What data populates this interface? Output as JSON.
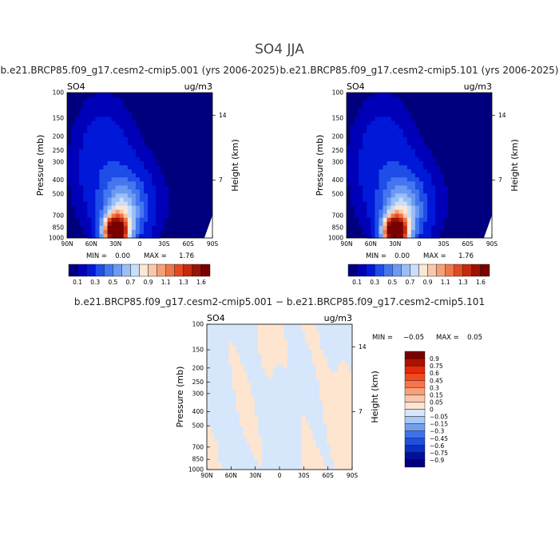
{
  "title": "SO4  JJA",
  "chart_data": [
    {
      "type": "heatmap",
      "panel": "case1",
      "title": "b.e21.BRCP85.f09_g17.cesm2-cmip5.001 (yrs 2006-2025)",
      "variable": "SO4",
      "units": "ug/m3",
      "xlabel": "",
      "ylabel": "Pressure (mb)",
      "ylabel_right": "Height (km)",
      "x_ticks": [
        "90N",
        "60N",
        "30N",
        "0",
        "30S",
        "60S",
        "90S"
      ],
      "y_ticks": [
        "100",
        "150",
        "200",
        "250",
        "300",
        "400",
        "500",
        "700",
        "850",
        "1000"
      ],
      "right_ticks": [
        "14",
        "7"
      ],
      "min_label": "MIN =",
      "min_value": "0.00",
      "max_label": "MAX =",
      "max_value": "1.76",
      "colorbar_ticks": [
        "0.1",
        "0.3",
        "0.5",
        "0.7",
        "0.9",
        "1.1",
        "1.3",
        "1.6"
      ],
      "peak": {
        "lat": 30,
        "pressure_mb": 900,
        "value": 1.76
      }
    },
    {
      "type": "heatmap",
      "panel": "case2",
      "title": "b.e21.BRCP85.f09_g17.cesm2-cmip5.101 (yrs 2006-2025)",
      "variable": "SO4",
      "units": "ug/m3",
      "xlabel": "",
      "ylabel": "Pressure (mb)",
      "ylabel_right": "Height (km)",
      "x_ticks": [
        "90N",
        "60N",
        "30N",
        "0",
        "30S",
        "60S",
        "90S"
      ],
      "y_ticks": [
        "100",
        "150",
        "200",
        "250",
        "300",
        "400",
        "500",
        "700",
        "850",
        "1000"
      ],
      "right_ticks": [
        "14",
        "7"
      ],
      "min_label": "MIN =",
      "min_value": "0.00",
      "max_label": "MAX =",
      "max_value": "1.76",
      "colorbar_ticks": [
        "0.1",
        "0.3",
        "0.5",
        "0.7",
        "0.9",
        "1.1",
        "1.3",
        "1.6"
      ],
      "peak": {
        "lat": 30,
        "pressure_mb": 900,
        "value": 1.76
      }
    },
    {
      "type": "heatmap",
      "panel": "difference",
      "title": "b.e21.BRCP85.f09_g17.cesm2-cmip5.001 − b.e21.BRCP85.f09_g17.cesm2-cmip5.101",
      "variable": "SO4",
      "units": "ug/m3",
      "xlabel": "",
      "ylabel": "Pressure (mb)",
      "ylabel_right": "Height (km)",
      "x_ticks": [
        "90N",
        "60N",
        "30N",
        "0",
        "30S",
        "60S",
        "90S"
      ],
      "y_ticks": [
        "100",
        "150",
        "200",
        "250",
        "300",
        "400",
        "500",
        "700",
        "850",
        "1000"
      ],
      "right_ticks": [
        "14",
        "7"
      ],
      "min_label": "MIN =",
      "min_value": "−0.05",
      "max_label": "MAX =",
      "max_value": "0.05",
      "colorbar_ticks": [
        "0.9",
        "0.75",
        "0.6",
        "0.45",
        "0.3",
        "0.15",
        "0.05",
        "0",
        "−0.05",
        "−0.15",
        "−0.3",
        "−0.45",
        "−0.6",
        "−0.75",
        "−0.9"
      ]
    }
  ],
  "colors": {
    "seq": [
      "#00007f",
      "#0000b8",
      "#0018d8",
      "#1f4de8",
      "#4476ef",
      "#6c9af2",
      "#9abff7",
      "#c9defa",
      "#fbe7d6",
      "#f8c8a8",
      "#f5a078",
      "#ee7648",
      "#e24a24",
      "#c52a10",
      "#9d1204",
      "#7a0000"
    ],
    "diff": [
      "#7a0000",
      "#b01000",
      "#e02a0a",
      "#f24a1c",
      "#f8734a",
      "#f9a07a",
      "#fbc6a8",
      "#fde5d0",
      "#d6e6fb",
      "#a9c8f6",
      "#6f9ff1",
      "#3e72ea",
      "#1f4fe0",
      "#0a2ec8",
      "#00109a",
      "#00007f"
    ],
    "diff_pos": "#fde5d0",
    "diff_neg": "#d6e6fb"
  }
}
